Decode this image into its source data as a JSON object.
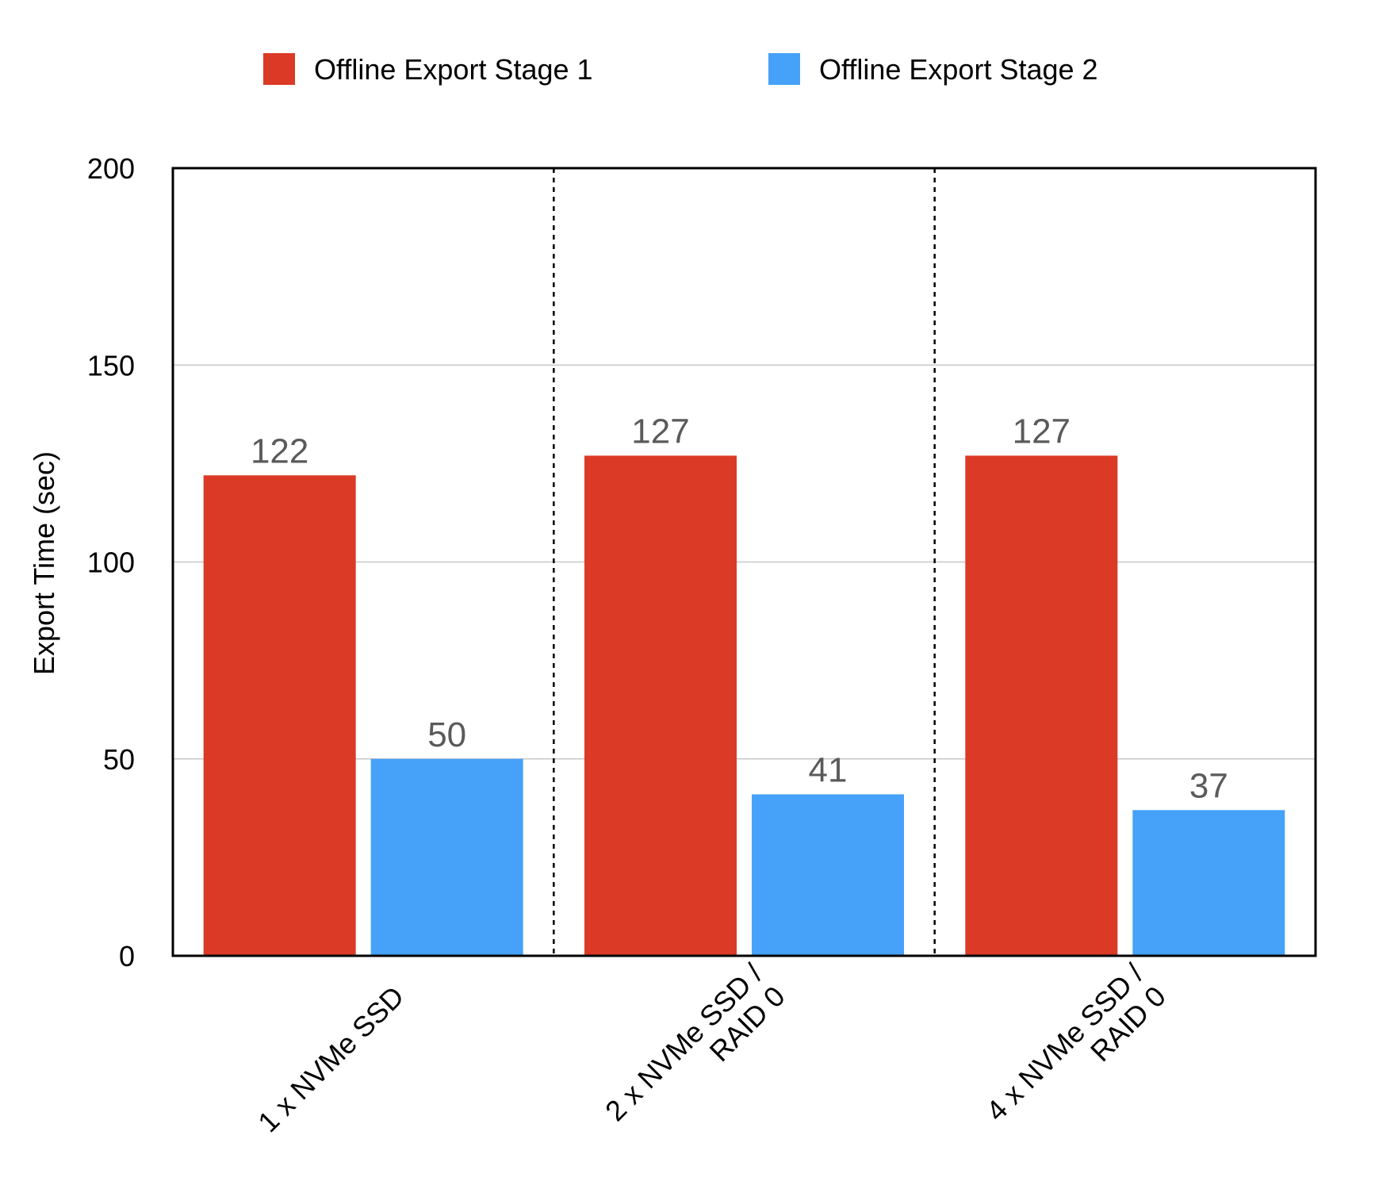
{
  "chart_data": {
    "type": "bar",
    "title": "",
    "xlabel": "",
    "ylabel": "Export Time (sec)",
    "ylim": [
      0,
      200
    ],
    "yticks": [
      0,
      50,
      100,
      150,
      200
    ],
    "grid": true,
    "legend_position": "top-center",
    "categories": [
      [
        "1 x NVMe SSD"
      ],
      [
        "2 x NVMe SSD /",
        "RAID 0"
      ],
      [
        "4 x NVMe SSD /",
        "RAID 0"
      ]
    ],
    "series": [
      {
        "name": "Offline Export Stage 1",
        "color": "#DB3A26",
        "values": [
          122,
          127,
          127
        ]
      },
      {
        "name": "Offline Export Stage 2",
        "color": "#46A2F8",
        "values": [
          50,
          41,
          37
        ]
      }
    ],
    "data_label_color": "#5a5a5a",
    "category_separators": "dashed"
  }
}
